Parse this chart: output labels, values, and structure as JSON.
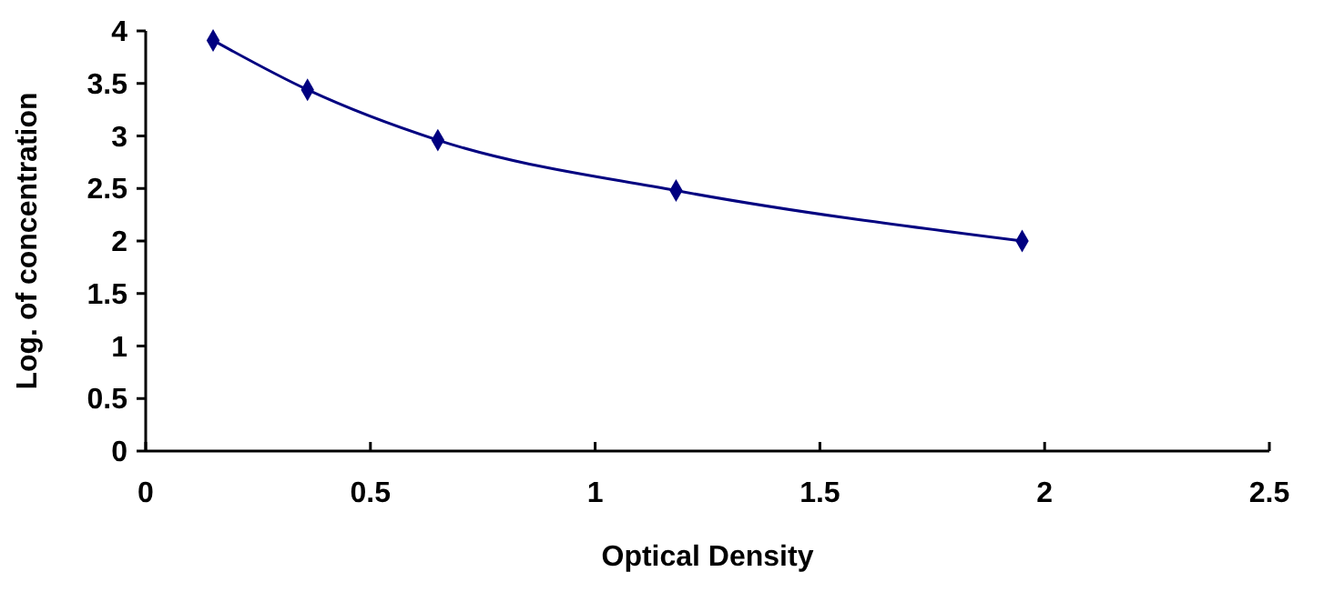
{
  "chart_data": {
    "type": "line",
    "xlabel": "Optical Density",
    "ylabel": "Log. of concentration",
    "x": [
      0.15,
      0.36,
      0.65,
      1.18,
      1.95
    ],
    "series": [
      {
        "color": "#000080",
        "values": [
          3.91,
          3.44,
          2.96,
          2.48,
          2.0
        ]
      }
    ],
    "xlim": [
      0,
      2.5
    ],
    "xticks": [
      0,
      0.5,
      1,
      1.5,
      2,
      2.5
    ],
    "ylim": [
      0,
      4
    ],
    "yticks": [
      0,
      0.5,
      1,
      1.5,
      2,
      2.5,
      3,
      3.5,
      4
    ],
    "marker": "diamond",
    "line_style": "solid"
  }
}
